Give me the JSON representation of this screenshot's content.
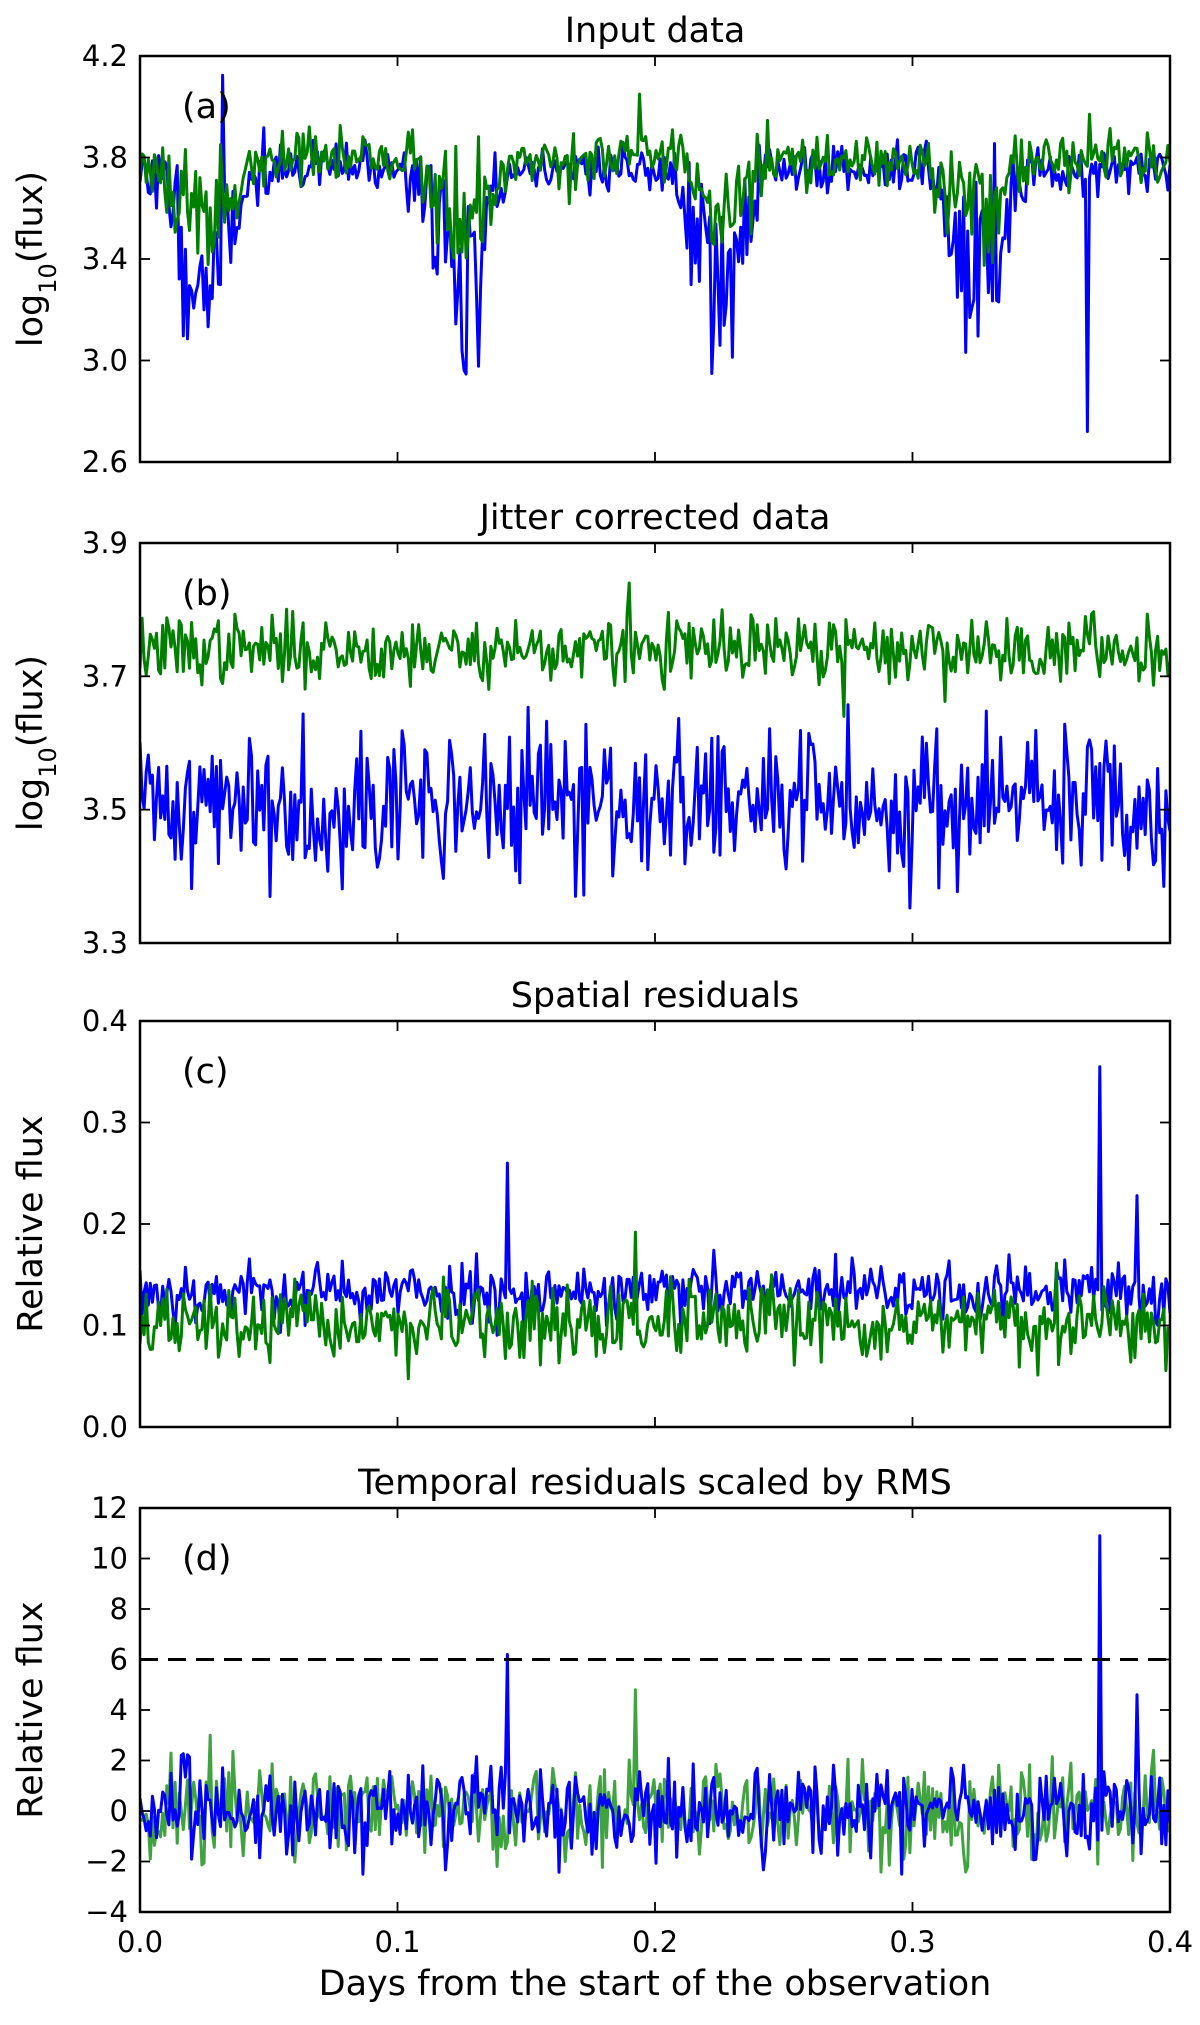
{
  "figure": {
    "xlabel": "Days from the start of the observation",
    "x_ticks": [
      "0.0",
      "0.1",
      "0.2",
      "0.3",
      "0.4"
    ],
    "xlim": [
      0.0,
      0.4
    ]
  },
  "colors": {
    "blue": "#0000ff",
    "green": "#007f00",
    "light_green": "#3fa33f",
    "dashed": "#000000"
  },
  "chart_data": [
    {
      "type": "line",
      "panel": "(a)",
      "title": "Input data",
      "ylabel_main": "log",
      "ylabel_sub": "10",
      "ylabel_tail": "(flux)",
      "ylim": [
        2.6,
        4.2
      ],
      "y_ticks": [
        "2.6",
        "3.0",
        "3.4",
        "3.8",
        "4.2"
      ],
      "series": [
        {
          "name": "blue",
          "color": "#0000ff",
          "kind": "dip",
          "base": 3.76,
          "noise": 0.05,
          "dip_depth": 0.6,
          "dip_noise": 0.18,
          "min_value": 2.72,
          "min_at": 0.368,
          "seed": 11
        },
        {
          "name": "green",
          "color": "#007f00",
          "kind": "dip",
          "base": 3.8,
          "noise": 0.05,
          "dip_depth": 0.3,
          "dip_noise": 0.08,
          "max_value": 4.05,
          "max_at": 0.194,
          "seed": 23
        }
      ]
    },
    {
      "type": "line",
      "panel": "(b)",
      "title": "Jitter corrected data",
      "ylabel_main": "log",
      "ylabel_sub": "10",
      "ylabel_tail": "(flux)",
      "ylim": [
        3.3,
        3.9
      ],
      "y_ticks": [
        "3.3",
        "3.5",
        "3.7",
        "3.9"
      ],
      "series": [
        {
          "name": "green",
          "color": "#007f00",
          "kind": "noise",
          "base": 3.74,
          "noise": 0.025,
          "spikes": [
            [
              0.19,
              3.84
            ],
            [
              0.273,
              3.64
            ]
          ],
          "seed": 37
        },
        {
          "name": "blue",
          "color": "#0000ff",
          "kind": "noise",
          "base": 3.51,
          "noise": 0.055,
          "spikes": [
            [
              0.169,
              3.37
            ]
          ],
          "seed": 41
        }
      ]
    },
    {
      "type": "line",
      "panel": "(c)",
      "title": "Spatial residuals",
      "ylabel_main": "Relative flux",
      "ylim": [
        0.0,
        0.4
      ],
      "y_ticks": [
        "0.0",
        "0.1",
        "0.2",
        "0.3",
        "0.4"
      ],
      "series": [
        {
          "name": "blue",
          "color": "#0000ff",
          "kind": "noise",
          "base": 0.133,
          "noise": 0.015,
          "spikes": [
            [
              0.143,
              0.26
            ],
            [
              0.373,
              0.355
            ],
            [
              0.387,
              0.228
            ]
          ],
          "seed": 53
        },
        {
          "name": "green",
          "color": "#007f00",
          "kind": "noise",
          "base": 0.1,
          "noise": 0.018,
          "spikes": [
            [
              0.192,
              0.192
            ]
          ],
          "seed": 67
        }
      ]
    },
    {
      "type": "line",
      "panel": "(d)",
      "title": "Temporal residuals scaled by RMS",
      "ylabel_main": "Relative flux",
      "ylim": [
        -4,
        12
      ],
      "y_ticks": [
        "−4",
        "−2",
        "0",
        "2",
        "4",
        "6",
        "8",
        "10",
        "12"
      ],
      "threshold": 6,
      "series": [
        {
          "name": "green",
          "color": "#3fa33f",
          "kind": "noise",
          "base": 0,
          "noise": 1.0,
          "spikes": [
            [
              0.192,
              4.8
            ],
            [
              0.027,
              3.0
            ]
          ],
          "seed": 71
        },
        {
          "name": "blue",
          "color": "#0000ff",
          "kind": "noise",
          "base": 0,
          "noise": 0.9,
          "spikes": [
            [
              0.143,
              6.2
            ],
            [
              0.373,
              10.9
            ],
            [
              0.387,
              4.6
            ]
          ],
          "seed": 83
        }
      ]
    }
  ]
}
